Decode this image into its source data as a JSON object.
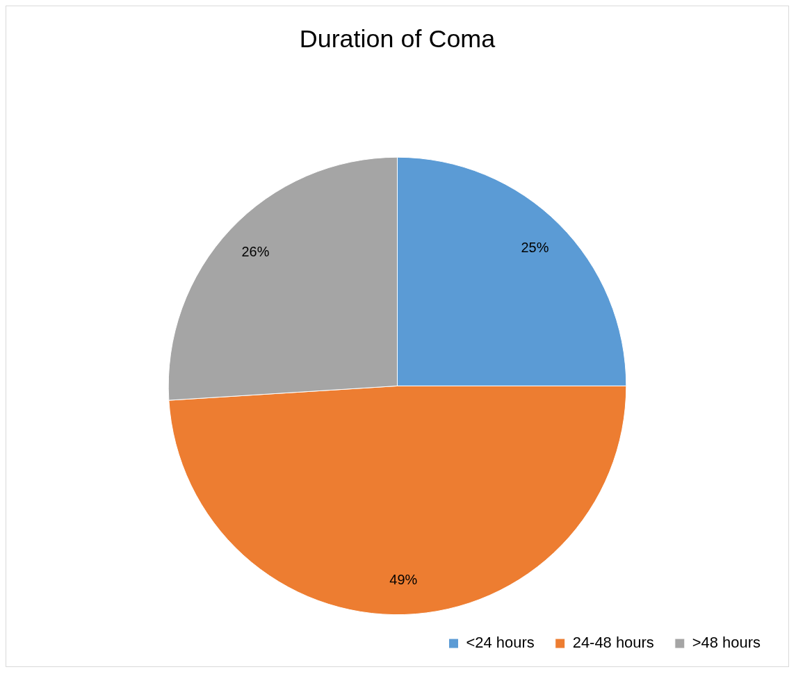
{
  "chart_data": {
    "type": "pie",
    "title": "Duration of Coma",
    "categories": [
      "<24 hours",
      "24-48 hours",
      ">48 hours"
    ],
    "values": [
      25,
      49,
      26
    ],
    "colors": [
      "#5b9bd5",
      "#ed7d31",
      "#a5a5a5"
    ],
    "value_labels": [
      "25%",
      "49%",
      "26%"
    ],
    "legend": "bottom right"
  }
}
